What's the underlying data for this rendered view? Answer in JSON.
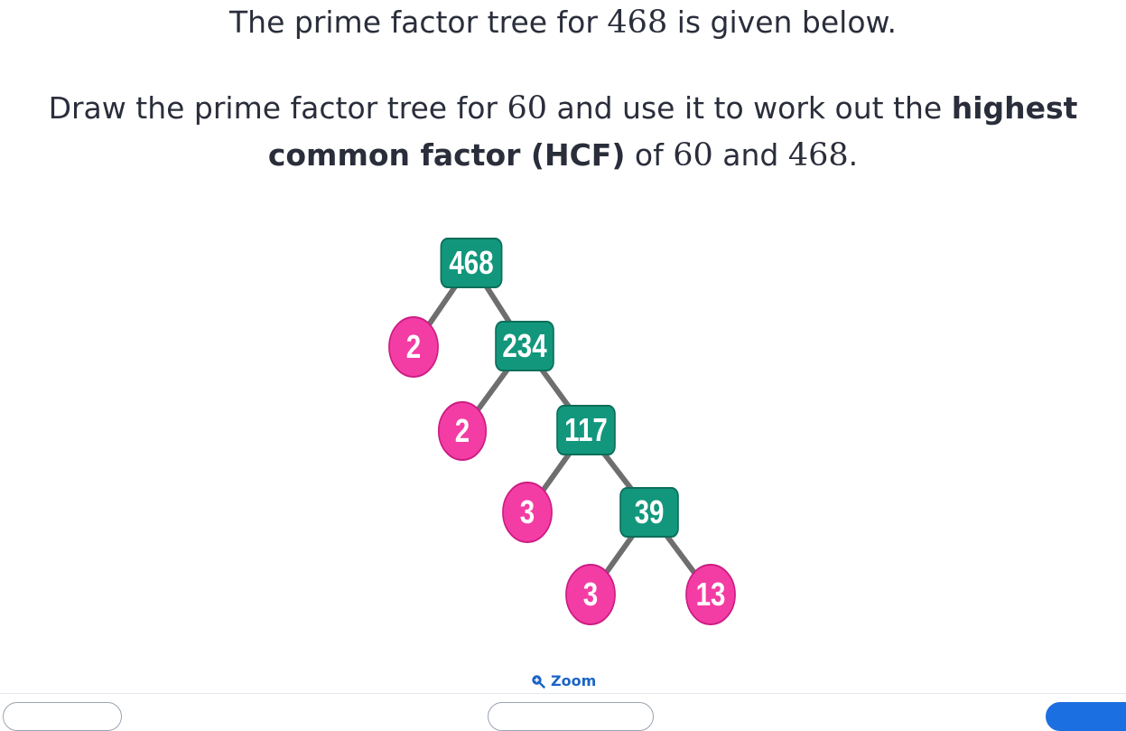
{
  "question": {
    "line1": {
      "text_a": "The prime factor tree for ",
      "num_a": "468",
      "text_b": " is given below."
    },
    "line2": {
      "text_a": "Draw the prime factor tree for ",
      "num_a": "60",
      "text_b": " and use it to work out the ",
      "bold_a": "highest"
    },
    "line3": {
      "bold_b": "common factor (HCF)",
      "text_c": " of ",
      "num_b": "60",
      "text_d": " and ",
      "num_c": "468",
      "text_e": "."
    }
  },
  "tree": {
    "nodes": [
      {
        "id": "n468",
        "label": "468",
        "kind": "composite"
      },
      {
        "id": "n2a",
        "label": "2",
        "kind": "prime"
      },
      {
        "id": "n234",
        "label": "234",
        "kind": "composite"
      },
      {
        "id": "n2b",
        "label": "2",
        "kind": "prime"
      },
      {
        "id": "n117",
        "label": "117",
        "kind": "composite"
      },
      {
        "id": "n3a",
        "label": "3",
        "kind": "prime"
      },
      {
        "id": "n39",
        "label": "39",
        "kind": "composite"
      },
      {
        "id": "n3b",
        "label": "3",
        "kind": "prime"
      },
      {
        "id": "n13",
        "label": "13",
        "kind": "prime"
      }
    ],
    "edges": [
      [
        "n468",
        "n2a"
      ],
      [
        "n468",
        "n234"
      ],
      [
        "n234",
        "n2b"
      ],
      [
        "n234",
        "n117"
      ],
      [
        "n117",
        "n3a"
      ],
      [
        "n117",
        "n39"
      ],
      [
        "n39",
        "n3b"
      ],
      [
        "n39",
        "n13"
      ]
    ],
    "colors": {
      "composite": "#12977c",
      "prime": "#f33da4",
      "edge": "#6e6e6e"
    }
  },
  "zoom": {
    "label": "Zoom",
    "icon": "zoom-in-icon",
    "color": "#1c64c6"
  }
}
